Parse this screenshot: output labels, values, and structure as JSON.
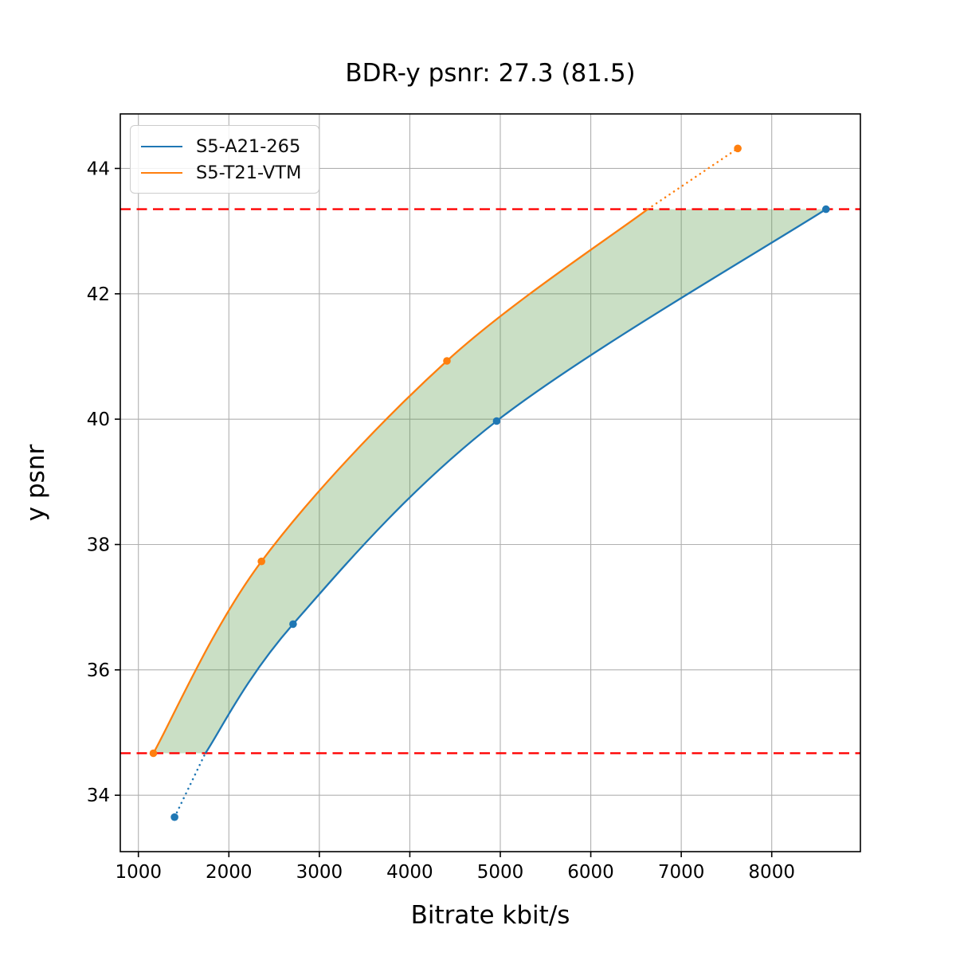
{
  "figure": {
    "background": "#ffffff"
  },
  "chart_data": {
    "type": "line",
    "title": "BDR-y psnr: 27.3 (81.5)",
    "xlabel": "Bitrate kbit/s",
    "ylabel": "y psnr",
    "xlim": [
      800,
      8980
    ],
    "ylim": [
      33.1,
      44.87
    ],
    "xticks": [
      1000,
      2000,
      3000,
      4000,
      5000,
      6000,
      7000,
      8000
    ],
    "yticks": [
      34,
      36,
      38,
      40,
      42,
      44
    ],
    "grid": true,
    "grid_color": "#b0b0b0",
    "spine_color": "#000000",
    "legend_position": "upper-left",
    "series": [
      {
        "name": "S5-A21-265",
        "color": "#1f77b4",
        "marker": "circle",
        "points": [
          [
            1400,
            33.65
          ],
          [
            2710,
            36.73
          ],
          [
            4960,
            39.97
          ],
          [
            8600,
            43.35
          ]
        ],
        "solid_curve": [
          [
            1740,
            34.67
          ],
          [
            2710,
            36.73
          ],
          [
            4960,
            39.97
          ],
          [
            8600,
            43.35
          ]
        ],
        "dotted_extension": [
          [
            1400,
            33.65
          ],
          [
            1740,
            34.67
          ]
        ]
      },
      {
        "name": "S5-T21-VTM",
        "color": "#ff7f0e",
        "marker": "circle",
        "points": [
          [
            1165,
            34.67
          ],
          [
            2360,
            37.73
          ],
          [
            4410,
            40.93
          ],
          [
            7625,
            44.32
          ]
        ],
        "solid_curve": [
          [
            1165,
            34.67
          ],
          [
            2360,
            37.73
          ],
          [
            4410,
            40.93
          ],
          [
            6630,
            43.35
          ]
        ],
        "dotted_extension": [
          [
            6630,
            43.35
          ],
          [
            7625,
            44.32
          ]
        ]
      }
    ],
    "hlines": [
      {
        "y": 34.67,
        "color": "#ff0000",
        "style": "dashed"
      },
      {
        "y": 43.35,
        "color": "#ff0000",
        "style": "dashed"
      }
    ],
    "fill_between": {
      "between": [
        "S5-T21-VTM",
        "S5-A21-265"
      ],
      "clip_y": [
        34.67,
        43.35
      ],
      "color": "#4e943e",
      "opacity": 0.3
    }
  }
}
